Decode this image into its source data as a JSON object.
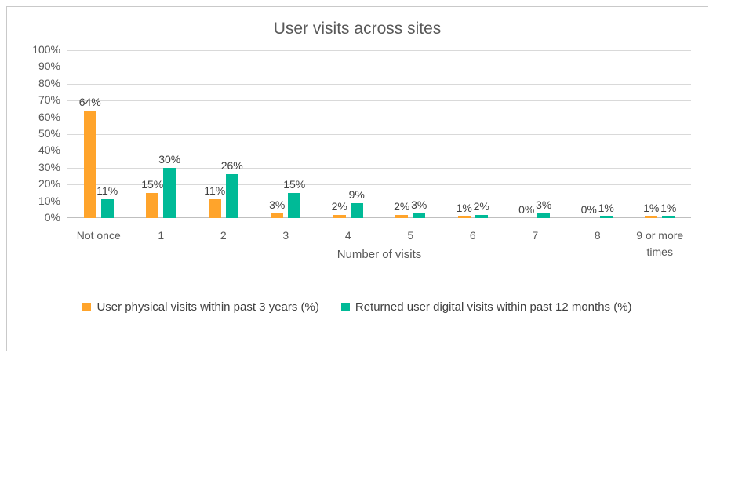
{
  "chart_data": {
    "type": "bar",
    "title": "User visits across sites",
    "xlabel": "Number of visits",
    "ylabel": "",
    "ylim": [
      0,
      100
    ],
    "ytick_step": 10,
    "ytick_suffix": "%",
    "grid": true,
    "legend_position": "bottom",
    "data_labels": true,
    "data_label_suffix": "%",
    "categories": [
      "Not once",
      "1",
      "2",
      "3",
      "4",
      "5",
      "6",
      "7",
      "8",
      "9 or more times"
    ],
    "series": [
      {
        "name": "User physical visits within past 3 years (%)",
        "color": "#FFA42B",
        "values": [
          64,
          15,
          11,
          3,
          2,
          2,
          1,
          0,
          0,
          1
        ]
      },
      {
        "name": "Returned user digital visits within past 12 months (%)",
        "color": "#00BA97",
        "values": [
          11,
          30,
          26,
          15,
          9,
          3,
          2,
          3,
          1,
          1
        ]
      }
    ]
  },
  "colors": {
    "title_text": "#595959",
    "axis_text": "#595959",
    "data_label_text": "#404040",
    "gridline": "#D9D9D9",
    "chart_border": "#C9C9C9",
    "series_physical": "#FFA42B",
    "series_digital": "#00BA97",
    "background": "#FFFFFF"
  }
}
